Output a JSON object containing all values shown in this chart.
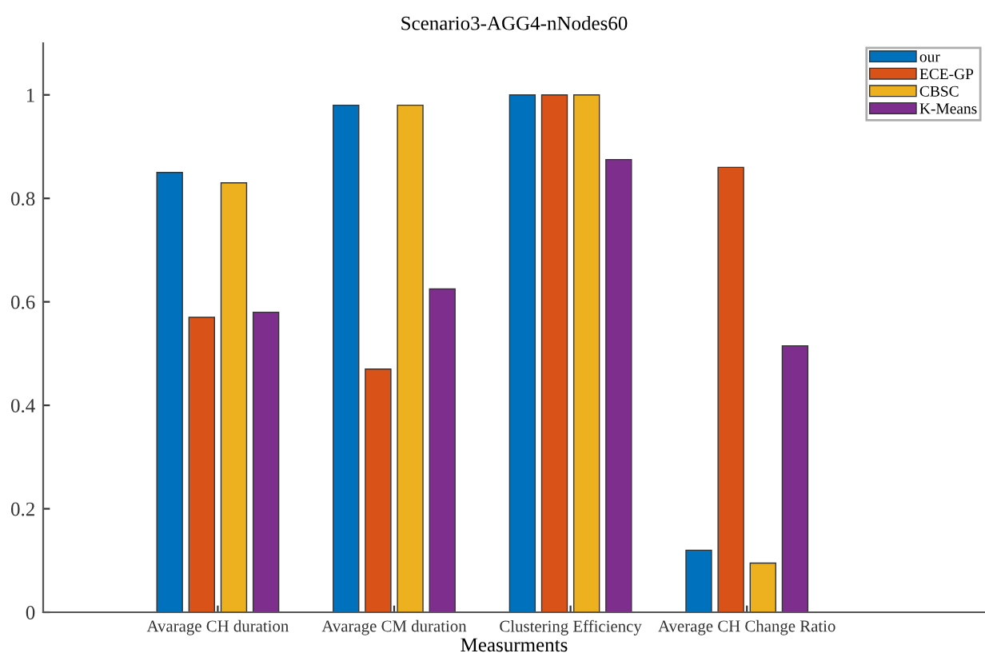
{
  "chart_data": {
    "type": "bar",
    "title": "Scenario3-AGG4-nNodes60",
    "xlabel": "Measurments",
    "categories": [
      "Avarage CH duration",
      "Avarage CM duration",
      "Clustering Efficiency",
      "Average CH Change Ratio"
    ],
    "series": [
      {
        "name": "our",
        "color": "#0072bd",
        "values": [
          0.85,
          0.98,
          1.0,
          0.12
        ]
      },
      {
        "name": "ECE-GP",
        "color": "#d95319",
        "values": [
          0.57,
          0.47,
          1.0,
          0.86
        ]
      },
      {
        "name": "CBSC",
        "color": "#edb120",
        "values": [
          0.83,
          0.98,
          1.0,
          0.095
        ]
      },
      {
        "name": "K-Means",
        "color": "#7e2f8e",
        "values": [
          0.58,
          0.625,
          0.875,
          0.515
        ]
      }
    ],
    "ylim": [
      0,
      1.1
    ],
    "yticks": [
      0,
      0.2,
      0.4,
      0.6,
      0.8,
      1
    ],
    "grid": false,
    "legend": "top right"
  }
}
